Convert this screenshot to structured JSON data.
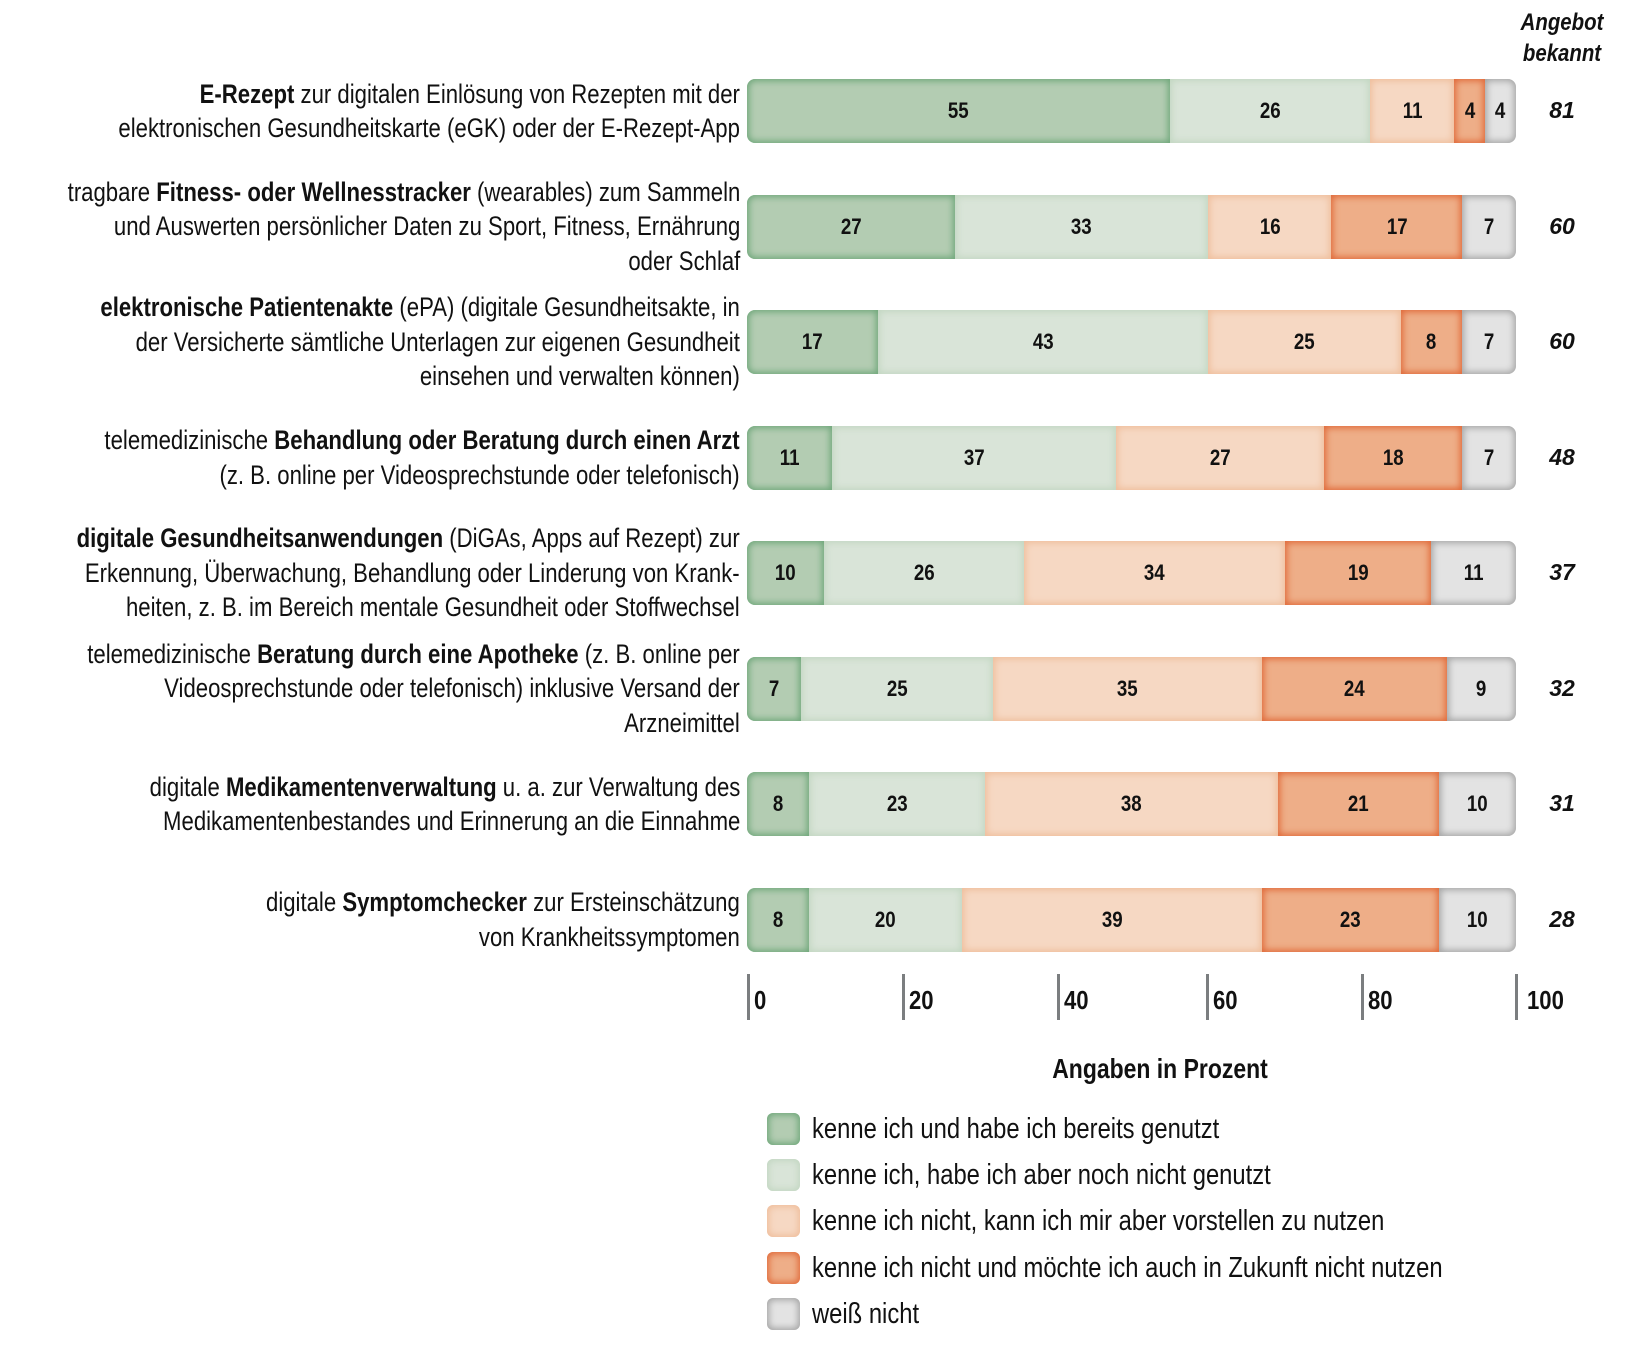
{
  "chart_data": {
    "type": "bar",
    "orientation": "horizontal",
    "stacked": true,
    "xlabel": "Angaben in Prozent",
    "xlim": [
      0,
      100
    ],
    "xticks": [
      "0",
      "20",
      "40",
      "60",
      "80",
      "100"
    ],
    "extra_column_header": [
      "Angebot",
      "bekannt"
    ],
    "legend": "bottom",
    "series_names": [
      "kenne ich und habe ich bereits genutzt",
      "kenne ich, habe ich aber noch nicht genutzt",
      "kenne ich nicht, kann ich mir aber vorstellen zu nutzen",
      "kenne ich nicht und möchte ich auch in Zukunft nicht nutzen",
      "weiß nicht"
    ],
    "colors": [
      "#b3ccb2",
      "#d9e4d8",
      "#f6d8c3",
      "#eeae88",
      "#e3e3e3"
    ],
    "categories": [
      {
        "lines": [
          [
            {
              "t": "E-Rezept",
              "b": true
            },
            {
              "t": " zur digitalen Einlösung von Rezepten mit der",
              "b": false
            }
          ],
          [
            {
              "t": "elektronischen Gesundheitskarte (eGK) oder der E-Rezept-App",
              "b": false
            }
          ]
        ],
        "values": [
          55,
          26,
          11,
          4,
          4
        ],
        "known": "81"
      },
      {
        "lines": [
          [
            {
              "t": "tragbare ",
              "b": false
            },
            {
              "t": "Fitness- oder Wellnesstracker",
              "b": true
            },
            {
              "t": " (wearables) zum Sammeln",
              "b": false
            }
          ],
          [
            {
              "t": "und Auswerten persönlicher Daten zu Sport, Fitness, Ernährung",
              "b": false
            }
          ],
          [
            {
              "t": "oder Schlaf",
              "b": false
            }
          ]
        ],
        "values": [
          27,
          33,
          16,
          17,
          7
        ],
        "known": "60"
      },
      {
        "lines": [
          [
            {
              "t": "elektronische Patientenakte",
              "b": true
            },
            {
              "t": " (ePA) (digitale Gesundheitsakte, in",
              "b": false
            }
          ],
          [
            {
              "t": "der Versicherte sämtliche Unterlagen zur eigenen Gesundheit",
              "b": false
            }
          ],
          [
            {
              "t": "einsehen und verwalten können)",
              "b": false
            }
          ]
        ],
        "values": [
          17,
          43,
          25,
          8,
          7
        ],
        "known": "60"
      },
      {
        "lines": [
          [
            {
              "t": "telemedizinische ",
              "b": false
            },
            {
              "t": "Behandlung oder Beratung durch einen Arzt",
              "b": true
            }
          ],
          [
            {
              "t": "(z. B. online per Videosprechstunde oder telefonisch)",
              "b": false
            }
          ]
        ],
        "values": [
          11,
          37,
          27,
          18,
          7
        ],
        "known": "48"
      },
      {
        "lines": [
          [
            {
              "t": "digitale Gesundheitsanwendungen",
              "b": true
            },
            {
              "t": " (DiGAs, Apps auf Rezept) zur",
              "b": false
            }
          ],
          [
            {
              "t": "Erkennung, Überwachung, Behandlung oder Linderung von Krank-",
              "b": false
            }
          ],
          [
            {
              "t": "heiten, z. B. im Bereich mentale Gesundheit oder Stoffwechsel",
              "b": false
            }
          ]
        ],
        "values": [
          10,
          26,
          34,
          19,
          11
        ],
        "known": "37"
      },
      {
        "lines": [
          [
            {
              "t": "telemedizinische ",
              "b": false
            },
            {
              "t": "Beratung durch eine Apotheke",
              "b": true
            },
            {
              "t": " (z. B. online per",
              "b": false
            }
          ],
          [
            {
              "t": "Videosprechstunde oder telefonisch) inklusive Versand der",
              "b": false
            }
          ],
          [
            {
              "t": "Arzneimittel",
              "b": false
            }
          ]
        ],
        "values": [
          7,
          25,
          35,
          24,
          9
        ],
        "known": "32"
      },
      {
        "lines": [
          [
            {
              "t": "digitale ",
              "b": false
            },
            {
              "t": "Medikamentenverwaltung",
              "b": true
            },
            {
              "t": " u. a. zur Verwaltung des",
              "b": false
            }
          ],
          [
            {
              "t": "Medikamentenbestandes und Erinnerung an die Einnahme",
              "b": false
            }
          ]
        ],
        "values": [
          8,
          23,
          38,
          21,
          10
        ],
        "known": "31"
      },
      {
        "lines": [
          [
            {
              "t": "digitale ",
              "b": false
            },
            {
              "t": "Symptomchecker",
              "b": true
            },
            {
              "t": " zur Ersteinschätzung",
              "b": false
            }
          ],
          [
            {
              "t": "von Krankheitssymptomen",
              "b": false
            }
          ]
        ],
        "values": [
          8,
          20,
          39,
          23,
          10
        ],
        "known": "28"
      }
    ]
  }
}
